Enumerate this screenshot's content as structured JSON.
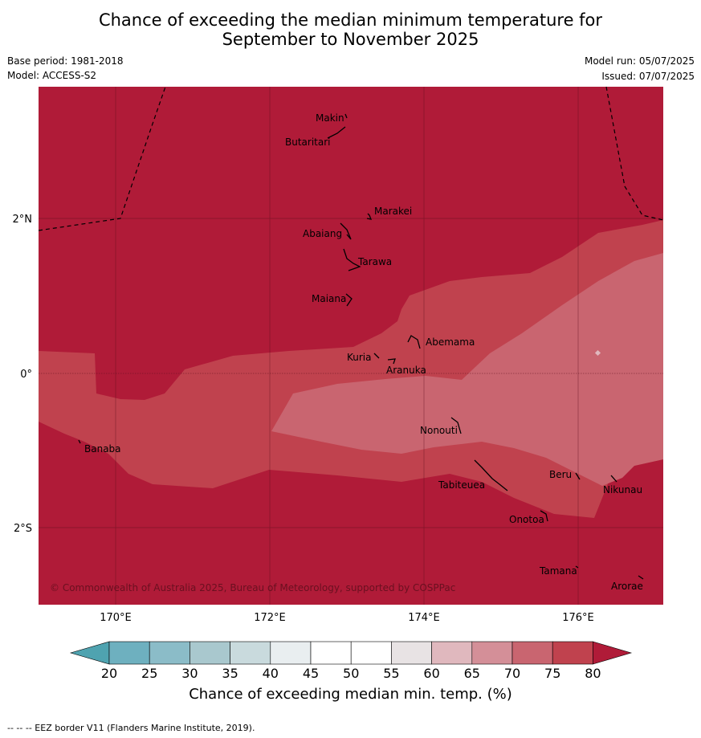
{
  "title": {
    "line1": "Chance of exceeding the median minimum temperature for",
    "line2": "September to November 2025"
  },
  "meta": {
    "base_period": "Base period: 1981-2018",
    "model": "Model: ACCESS-S2",
    "model_run": "Model run: 05/07/2025",
    "issued": "Issued: 07/07/2025"
  },
  "map": {
    "lon_labels": [
      "170°E",
      "172°E",
      "174°E",
      "176°E"
    ],
    "lat_labels": [
      "2°N",
      "0°",
      "2°S"
    ],
    "places": [
      "Makin",
      "Butaritari",
      "Marakei",
      "Abaiang",
      "Tarawa",
      "Maiana",
      "Abemama",
      "Kuria",
      "Aranuka",
      "Nonouti",
      "Banaba",
      "Tabiteuea",
      "Beru",
      "Nikunau",
      "Onotoa",
      "Tamana",
      "Arorae"
    ],
    "copyright": "© Commonwealth of Australia 2025, Bureau of Meteorology, supported by COSPPac",
    "colors": {
      "gt80": "#b01b38",
      "c75_80": "#c0424e",
      "c70_75": "#c96570"
    }
  },
  "colorbar": {
    "ticks": [
      "20",
      "25",
      "30",
      "35",
      "40",
      "45",
      "50",
      "55",
      "60",
      "65",
      "70",
      "75",
      "80"
    ],
    "colors": [
      "#4fa3b0",
      "#6eb0bf",
      "#8bbcc8",
      "#a9c8ce",
      "#c9dadd",
      "#e9eef0",
      "#ffffff",
      "#ffffff",
      "#e8e3e4",
      "#e0b8be",
      "#d48f98",
      "#c96570",
      "#c0424e",
      "#b01b38"
    ],
    "label": "Chance of exceeding median min. temp. (%)"
  },
  "footnote": "--  --  -- EEZ border V11 (Flanders Marine Institute, 2019)."
}
